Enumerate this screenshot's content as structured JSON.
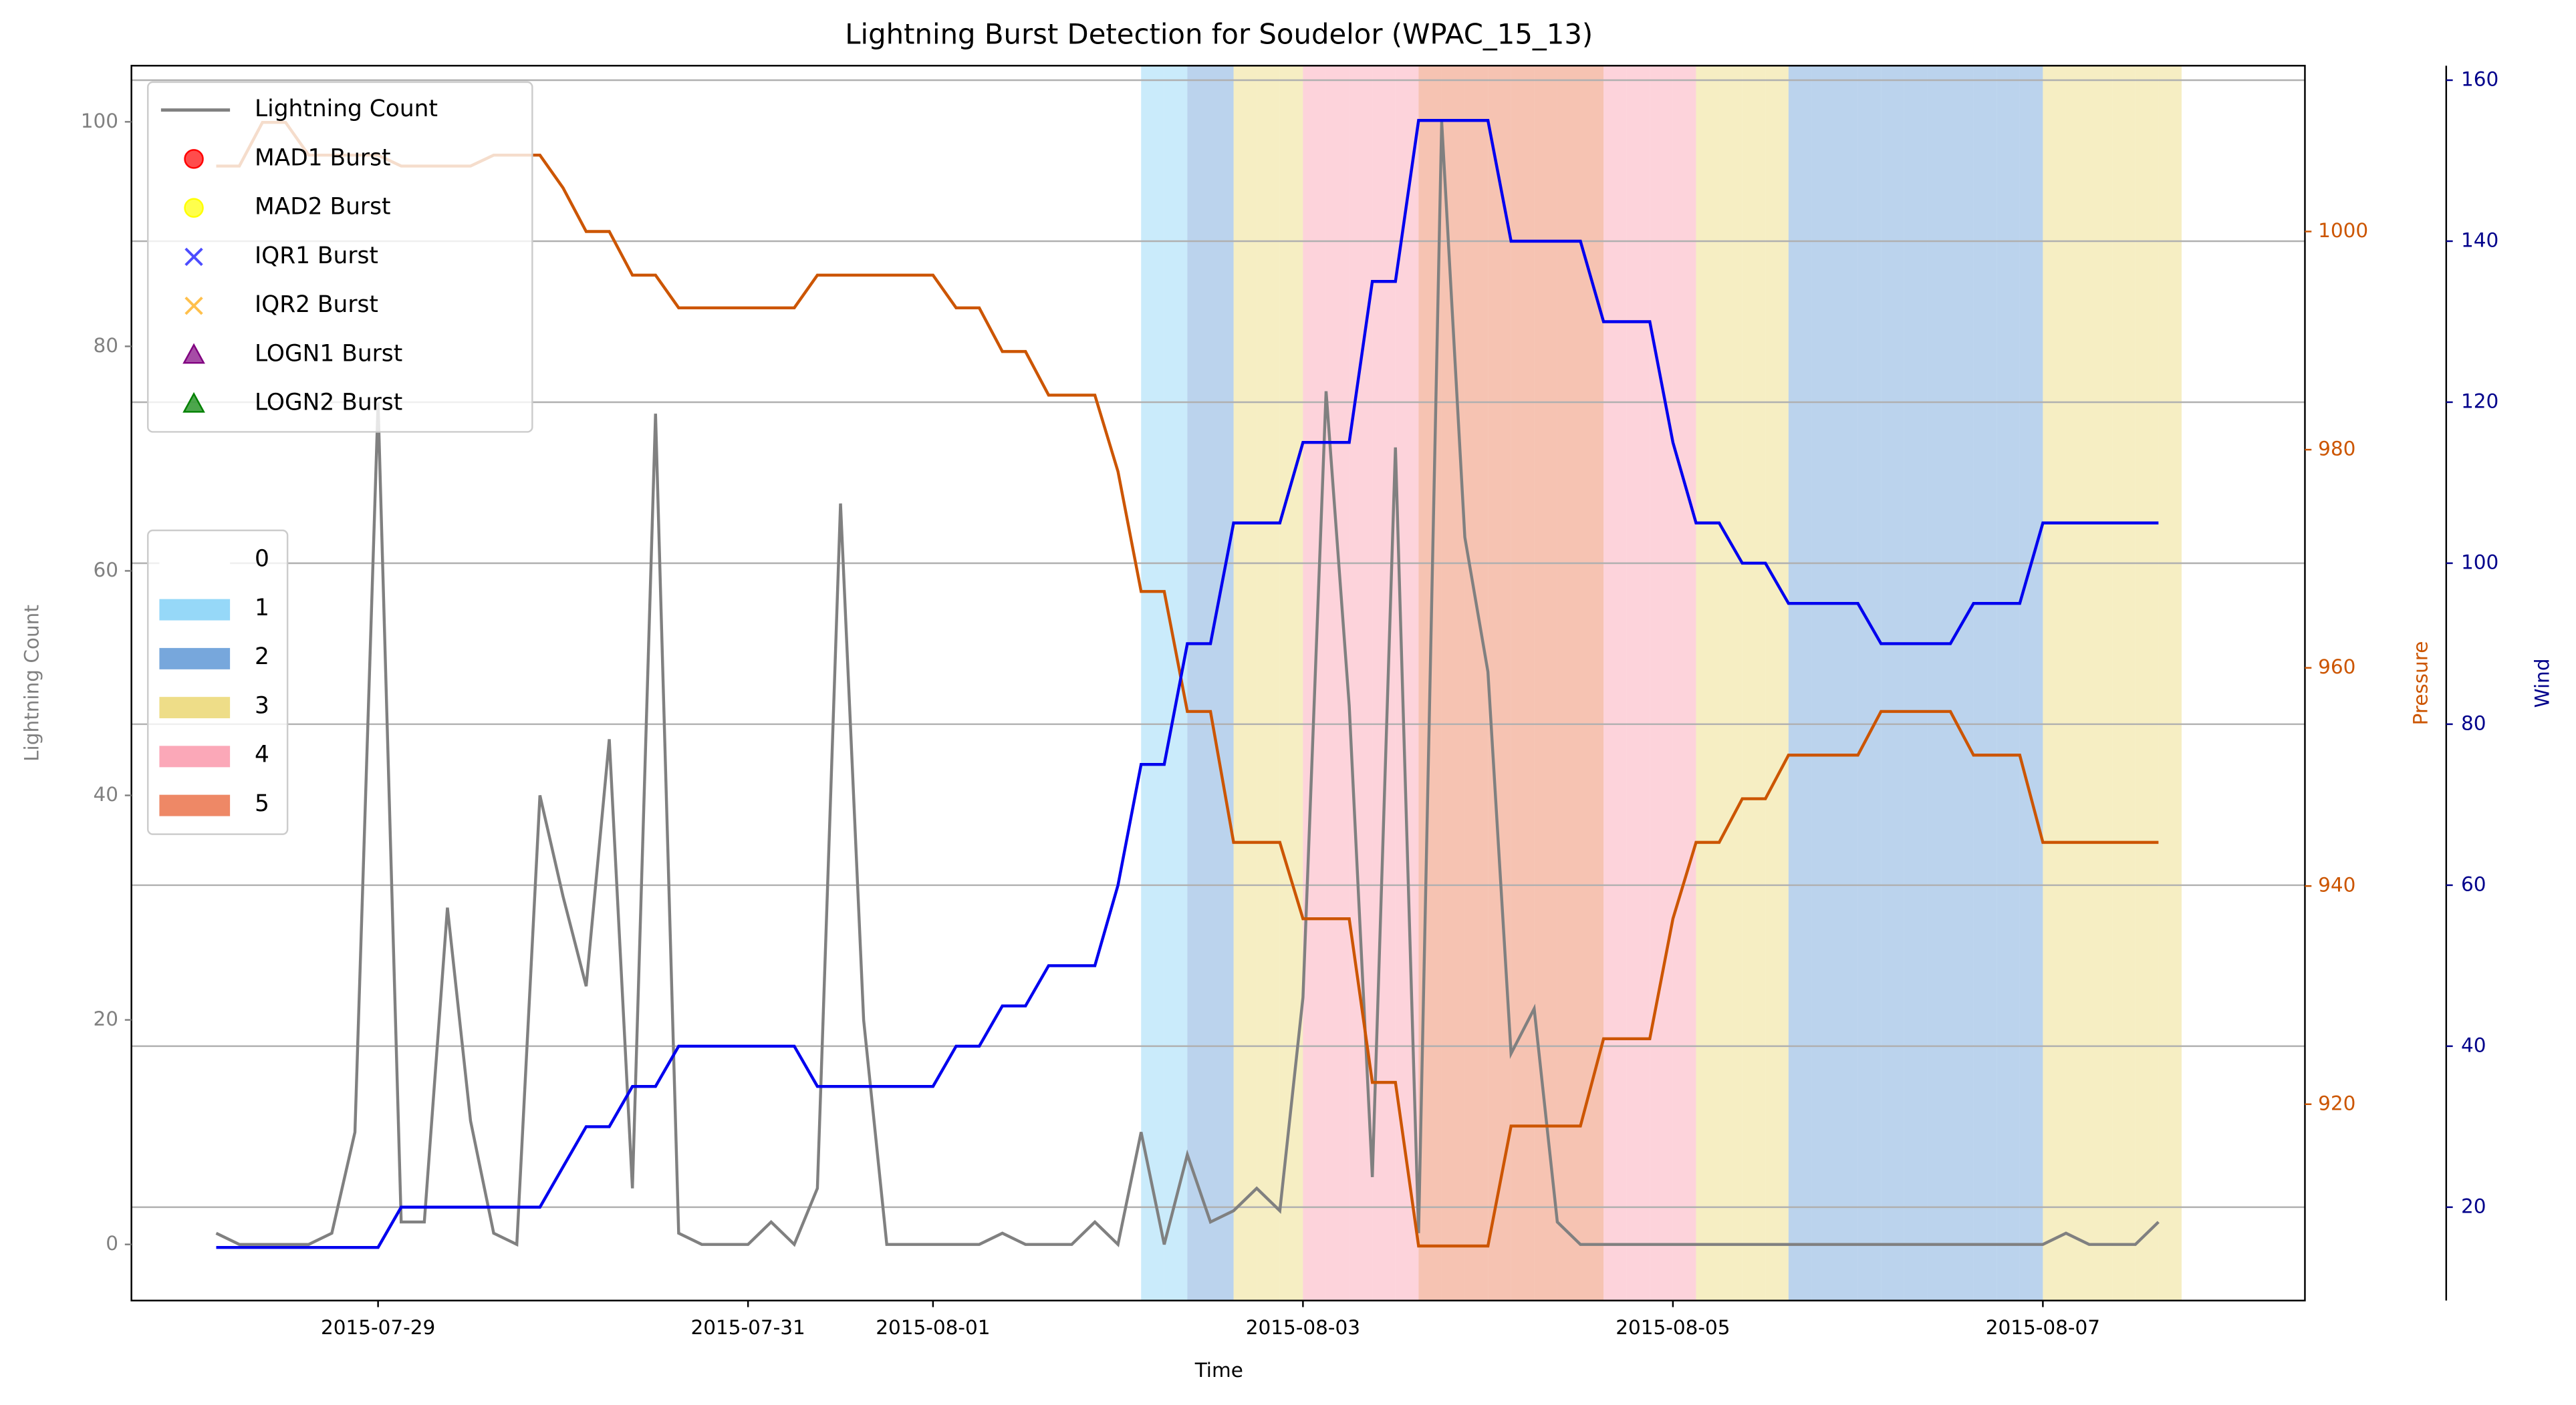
{
  "chart_data": {
    "type": "line",
    "title": "Lightning Burst Detection for Soudelor (WPAC_15_13)",
    "xlabel": "Time",
    "ylabel": "Lightning Count",
    "y2label": "Pressure",
    "y3label": "Wind",
    "x": [
      "2015-07-28T03:00",
      "2015-07-28T06:00",
      "2015-07-28T09:00",
      "2015-07-28T12:00",
      "2015-07-28T15:00",
      "2015-07-28T18:00",
      "2015-07-28T21:00",
      "2015-07-29T00:00",
      "2015-07-29T03:00",
      "2015-07-29T06:00",
      "2015-07-29T09:00",
      "2015-07-29T12:00",
      "2015-07-29T15:00",
      "2015-07-29T18:00",
      "2015-07-29T21:00",
      "2015-07-30T00:00",
      "2015-07-30T03:00",
      "2015-07-30T06:00",
      "2015-07-30T09:00",
      "2015-07-30T12:00",
      "2015-07-30T15:00",
      "2015-07-30T18:00",
      "2015-07-30T21:00",
      "2015-07-31T00:00",
      "2015-07-31T03:00",
      "2015-07-31T06:00",
      "2015-07-31T09:00",
      "2015-07-31T12:00",
      "2015-07-31T15:00",
      "2015-07-31T18:00",
      "2015-07-31T21:00",
      "2015-08-01T00:00",
      "2015-08-01T03:00",
      "2015-08-01T06:00",
      "2015-08-01T09:00",
      "2015-08-01T12:00",
      "2015-08-01T15:00",
      "2015-08-01T18:00",
      "2015-08-01T21:00",
      "2015-08-02T00:00",
      "2015-08-02T03:00",
      "2015-08-02T06:00",
      "2015-08-02T09:00",
      "2015-08-02T12:00",
      "2015-08-02T15:00",
      "2015-08-02T18:00",
      "2015-08-02T21:00",
      "2015-08-03T00:00",
      "2015-08-03T03:00",
      "2015-08-03T06:00",
      "2015-08-03T09:00",
      "2015-08-03T12:00",
      "2015-08-03T15:00",
      "2015-08-03T18:00",
      "2015-08-03T21:00",
      "2015-08-04T00:00",
      "2015-08-04T03:00",
      "2015-08-04T06:00",
      "2015-08-04T09:00",
      "2015-08-04T12:00",
      "2015-08-04T15:00",
      "2015-08-04T18:00",
      "2015-08-04T21:00",
      "2015-08-05T00:00",
      "2015-08-05T03:00",
      "2015-08-05T06:00",
      "2015-08-05T09:00",
      "2015-08-05T12:00",
      "2015-08-05T15:00",
      "2015-08-05T18:00",
      "2015-08-05T21:00",
      "2015-08-06T00:00",
      "2015-08-06T03:00",
      "2015-08-06T06:00",
      "2015-08-06T09:00",
      "2015-08-06T12:00",
      "2015-08-06T15:00",
      "2015-08-06T18:00",
      "2015-08-06T21:00",
      "2015-08-07T00:00",
      "2015-08-07T03:00",
      "2015-08-07T06:00",
      "2015-08-07T09:00",
      "2015-08-07T12:00",
      "2015-08-07T15:00"
    ],
    "series": [
      {
        "name": "Lightning Count",
        "color": "#808080",
        "axis": "y",
        "values": [
          1,
          0,
          0,
          0,
          0,
          1,
          10,
          75,
          2,
          2,
          30,
          11,
          1,
          0,
          40,
          31,
          23,
          45,
          5,
          74,
          1,
          0,
          0,
          0,
          2,
          0,
          5,
          66,
          20,
          0,
          0,
          0,
          0,
          0,
          1,
          0,
          0,
          0,
          2,
          0,
          10,
          0,
          8,
          2,
          3,
          5,
          3,
          22,
          76,
          48,
          6,
          71,
          1,
          100,
          63,
          51,
          17,
          21,
          2,
          0,
          0,
          0,
          0,
          0,
          0,
          0,
          0,
          0,
          0,
          0,
          0,
          0,
          0,
          0,
          0,
          0,
          0,
          0,
          0,
          0,
          1,
          0,
          0,
          0,
          2
        ]
      },
      {
        "color": "#cc5500",
        "axis": "y2",
        "values": [
          1006,
          1006,
          1010,
          1010,
          1007,
          1007,
          1007,
          1007,
          1006,
          1006,
          1006,
          1006,
          1007,
          1007,
          1007,
          1004,
          1000,
          1000,
          996,
          996,
          993,
          993,
          993,
          993,
          993,
          993,
          996,
          996,
          996,
          996,
          996,
          996,
          993,
          993,
          989,
          989,
          985,
          985,
          985,
          978,
          967,
          967,
          956,
          956,
          944,
          944,
          944,
          937,
          937,
          937,
          922,
          922,
          907,
          907,
          907,
          907,
          918,
          918,
          918,
          918,
          926,
          926,
          926,
          937,
          944,
          944,
          948,
          948,
          952,
          952,
          952,
          952,
          956,
          956,
          956,
          956,
          952,
          952,
          952,
          944,
          944,
          944,
          944,
          944,
          944
        ]
      },
      {
        "color": "#0000ee",
        "axis": "y3",
        "values": [
          15,
          15,
          15,
          15,
          15,
          15,
          15,
          15,
          20,
          20,
          20,
          20,
          20,
          20,
          20,
          25,
          30,
          30,
          35,
          35,
          40,
          40,
          40,
          40,
          40,
          40,
          35,
          35,
          35,
          35,
          35,
          35,
          40,
          40,
          45,
          45,
          50,
          50,
          50,
          60,
          75,
          75,
          90,
          90,
          105,
          105,
          105,
          115,
          115,
          115,
          135,
          135,
          155,
          155,
          155,
          155,
          140,
          140,
          140,
          140,
          130,
          130,
          130,
          115,
          105,
          105,
          100,
          100,
          95,
          95,
          95,
          95,
          90,
          90,
          90,
          90,
          95,
          95,
          95,
          105,
          105,
          105,
          105,
          105,
          105
        ]
      }
    ],
    "category_values": [
      0,
      0,
      0,
      0,
      0,
      0,
      0,
      0,
      0,
      0,
      0,
      0,
      0,
      0,
      0,
      0,
      0,
      0,
      0,
      0,
      0,
      0,
      0,
      0,
      0,
      0,
      0,
      0,
      0,
      0,
      0,
      0,
      0,
      0,
      0,
      0,
      0,
      0,
      0,
      0,
      1,
      1,
      2,
      2,
      3,
      3,
      3,
      4,
      4,
      4,
      4,
      4,
      5,
      5,
      5,
      5,
      5,
      5,
      5,
      5,
      4,
      4,
      4,
      4,
      3,
      3,
      3,
      3,
      2,
      2,
      2,
      2,
      2,
      2,
      2,
      2,
      2,
      2,
      2,
      3,
      3,
      3,
      3,
      3,
      3
    ],
    "category_legend": {
      "labels": [
        "0",
        "1",
        "2",
        "3",
        "4",
        "5"
      ],
      "colors": [
        "#ffffff",
        "#96d8f8",
        "#77a7dc",
        "#eedd88",
        "#fba8b8",
        "#ee8866"
      ]
    },
    "burst_legend": [
      {
        "name": "MAD1 Burst",
        "color": "#ff0000",
        "marker": "o"
      },
      {
        "name": "MAD2 Burst",
        "color": "#ffff00",
        "marker": "o"
      },
      {
        "name": "IQR1 Burst",
        "color": "#0000ff",
        "marker": "x"
      },
      {
        "name": "IQR2 Burst",
        "color": "#ffa500",
        "marker": "x"
      },
      {
        "name": "LOGN1 Burst",
        "color": "#800080",
        "marker": "^"
      },
      {
        "name": "LOGN2 Burst",
        "color": "#008000",
        "marker": "^"
      }
    ],
    "xlim": [
      "2015-07-27T16:00",
      "2015-08-08T10:00"
    ],
    "xticks": [
      "2015-07-29",
      "2015-07-31",
      "2015-08-01",
      "2015-08-03",
      "2015-08-05",
      "2015-08-07"
    ],
    "ylim": [
      -5,
      105
    ],
    "yticks": [
      0,
      20,
      40,
      60,
      80,
      100
    ],
    "y2lim": [
      902,
      1015.2
    ],
    "y2ticks": [
      920,
      940,
      960,
      980,
      1000
    ],
    "y3lim": [
      8.4,
      161.8
    ],
    "y3ticks": [
      20,
      40,
      60,
      80,
      100,
      120,
      140,
      160
    ],
    "y3grid": true
  }
}
